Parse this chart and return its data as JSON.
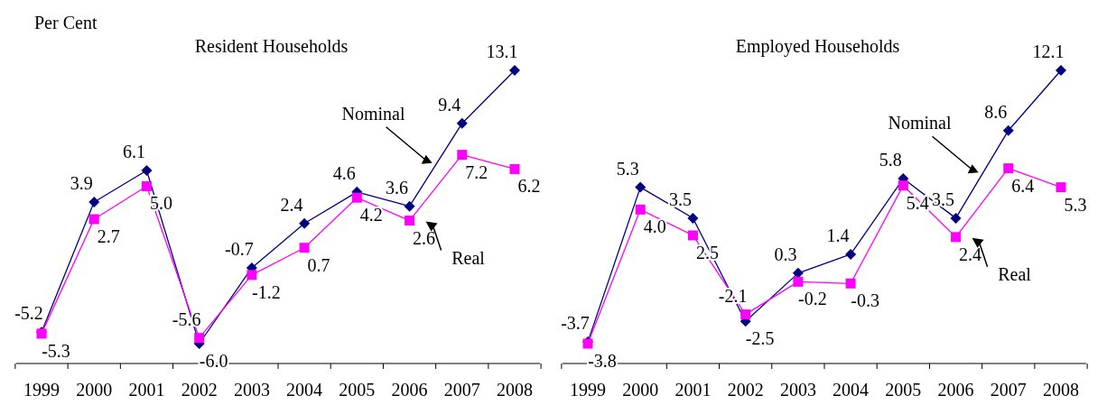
{
  "chart_data": [
    {
      "type": "line",
      "title": "Resident Households",
      "ylabel": "Per Cent",
      "categories": [
        "1999",
        "2000",
        "2001",
        "2002",
        "2003",
        "2004",
        "2005",
        "2006",
        "2007",
        "2008"
      ],
      "legend": false,
      "grid": false,
      "tick_labels": "x",
      "series": [
        {
          "name": "Nominal",
          "color": "#000080",
          "marker": "diamond",
          "values": [
            -5.2,
            3.9,
            6.1,
            -6.0,
            -0.7,
            2.4,
            4.6,
            3.6,
            9.4,
            13.1
          ],
          "value_labels": [
            "-5.2",
            "3.9",
            "6.1",
            "-6.0",
            "-0.7",
            "2.4",
            "4.6",
            "3.6",
            "9.4",
            "13.1"
          ]
        },
        {
          "name": "Real",
          "color": "#ff00ff",
          "marker": "square",
          "values": [
            -5.3,
            2.7,
            5.0,
            -5.6,
            -1.2,
            0.7,
            4.2,
            2.6,
            7.2,
            6.2
          ],
          "value_labels": [
            "-5.3",
            "2.7",
            "5.0",
            "-5.6",
            "-1.2",
            "0.7",
            "4.2",
            "2.6",
            "7.2",
            "6.2"
          ]
        }
      ]
    },
    {
      "type": "line",
      "title": "Employed Households",
      "categories": [
        "1999",
        "2000",
        "2001",
        "2002",
        "2003",
        "2004",
        "2005",
        "2006",
        "2007",
        "2008"
      ],
      "legend": false,
      "grid": false,
      "tick_labels": "x",
      "series": [
        {
          "name": "Nominal",
          "color": "#000080",
          "marker": "diamond",
          "values": [
            -3.7,
            5.3,
            3.5,
            -2.5,
            0.3,
            1.4,
            5.8,
            3.5,
            8.6,
            12.1
          ],
          "value_labels": [
            "-3.7",
            "5.3",
            "3.5",
            "-2.5",
            "0.3",
            "1.4",
            "5.8",
            "3.5",
            "8.6",
            "12.1"
          ]
        },
        {
          "name": "Real",
          "color": "#ff00ff",
          "marker": "square",
          "values": [
            -3.8,
            4.0,
            2.5,
            -2.1,
            -0.2,
            -0.3,
            5.4,
            2.4,
            6.4,
            5.3
          ],
          "value_labels": [
            "-3.8",
            "4.0",
            "2.5",
            "-2.1",
            "-0.2",
            "-0.3",
            "5.4",
            "2.4",
            "6.4",
            "5.3"
          ]
        }
      ]
    }
  ]
}
